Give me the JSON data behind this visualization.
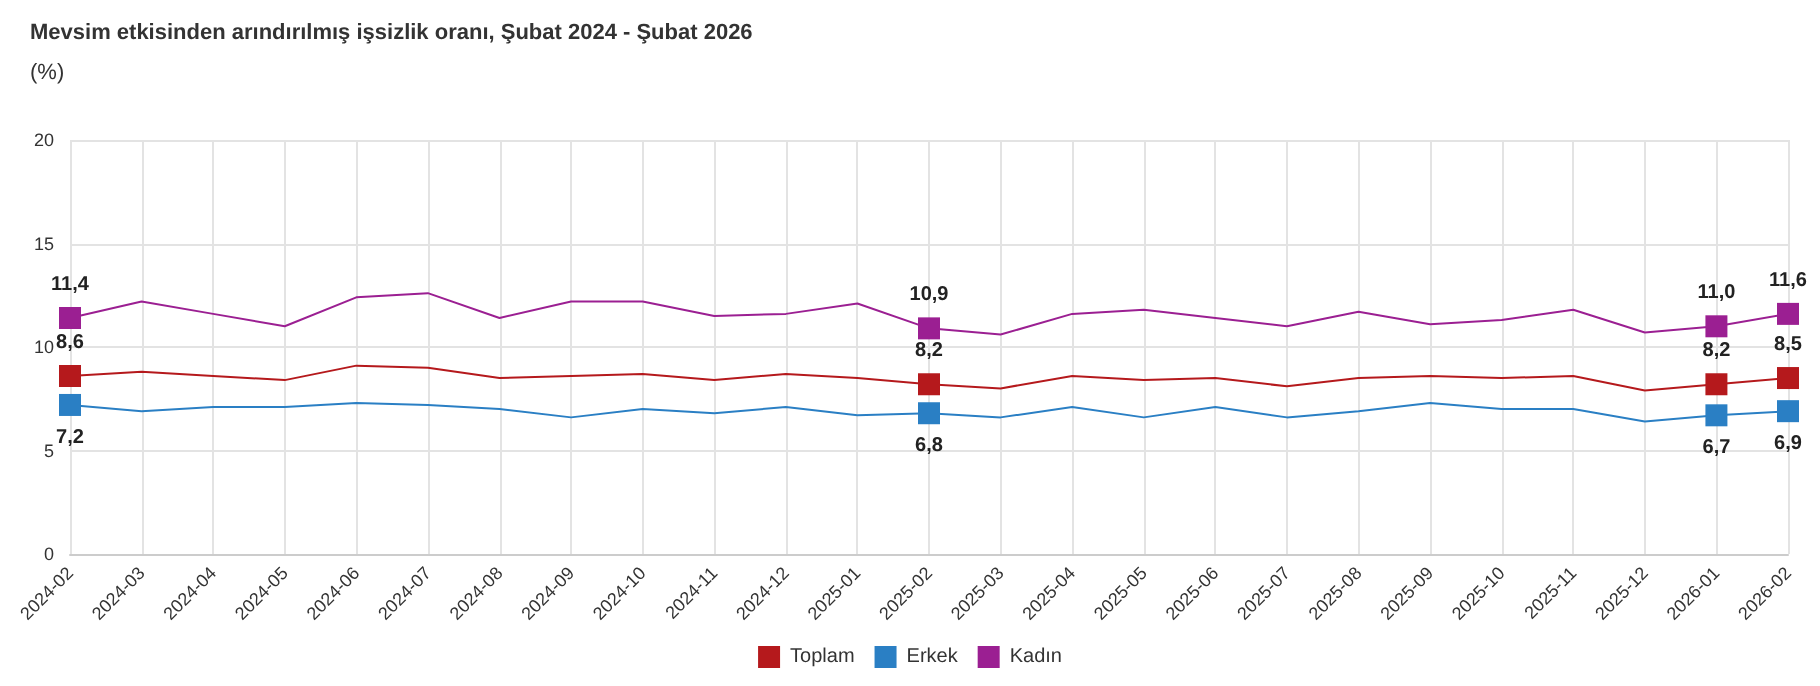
{
  "chart_data": {
    "type": "line",
    "title": "Mevsim etkisinden arındırılmış işsizlik oranı, Şubat 2024 - Şubat 2026",
    "ylabel": "(%)",
    "categories": [
      "2024-02",
      "2024-03",
      "2024-04",
      "2024-05",
      "2024-06",
      "2024-07",
      "2024-08",
      "2024-09",
      "2024-10",
      "2024-11",
      "2024-12",
      "2025-01",
      "2025-02",
      "2025-03",
      "2025-04",
      "2025-05",
      "2025-06",
      "2025-07",
      "2025-08",
      "2025-09",
      "2025-10",
      "2025-11",
      "2025-12",
      "2026-01",
      "2026-02"
    ],
    "series": [
      {
        "name": "Toplam",
        "color": "#b5191c",
        "values": [
          8.6,
          8.8,
          8.6,
          8.4,
          9.1,
          9.0,
          8.5,
          8.6,
          8.7,
          8.4,
          8.7,
          8.5,
          8.2,
          8.0,
          8.6,
          8.4,
          8.5,
          8.1,
          8.5,
          8.6,
          8.5,
          8.6,
          7.9,
          8.2,
          8.5
        ],
        "value_labels": [
          "8,6",
          null,
          null,
          null,
          null,
          null,
          null,
          null,
          null,
          null,
          null,
          null,
          "8,2",
          null,
          null,
          null,
          null,
          null,
          null,
          null,
          null,
          null,
          null,
          "8,2",
          "8,5"
        ]
      },
      {
        "name": "Erkek",
        "color": "#2a7fc4",
        "values": [
          7.2,
          6.9,
          7.1,
          7.1,
          7.3,
          7.2,
          7.0,
          6.6,
          7.0,
          6.8,
          7.1,
          6.7,
          6.8,
          6.6,
          7.1,
          6.6,
          7.1,
          6.6,
          6.9,
          7.3,
          7.0,
          7.0,
          6.4,
          6.7,
          6.9
        ],
        "value_labels": [
          "7,2",
          null,
          null,
          null,
          null,
          null,
          null,
          null,
          null,
          null,
          null,
          null,
          "6,8",
          null,
          null,
          null,
          null,
          null,
          null,
          null,
          null,
          null,
          null,
          "6,7",
          "6,9"
        ]
      },
      {
        "name": "Kadın",
        "color": "#9b1f92",
        "values": [
          11.4,
          12.2,
          11.6,
          11.0,
          12.4,
          12.6,
          11.4,
          12.2,
          12.2,
          11.5,
          11.6,
          12.1,
          10.9,
          10.6,
          11.6,
          11.8,
          11.4,
          11.0,
          11.7,
          11.1,
          11.3,
          11.8,
          10.7,
          11.0,
          11.6
        ],
        "value_labels": [
          "11,4",
          null,
          null,
          null,
          null,
          null,
          null,
          null,
          null,
          null,
          null,
          null,
          "10,9",
          null,
          null,
          null,
          null,
          null,
          null,
          null,
          null,
          null,
          null,
          "11,0",
          "11,6"
        ]
      }
    ],
    "ylim": [
      0,
      20
    ],
    "yticks": [
      0,
      5,
      10,
      15,
      20
    ],
    "grid": true,
    "legend": "bottom",
    "line_style": "solid"
  }
}
